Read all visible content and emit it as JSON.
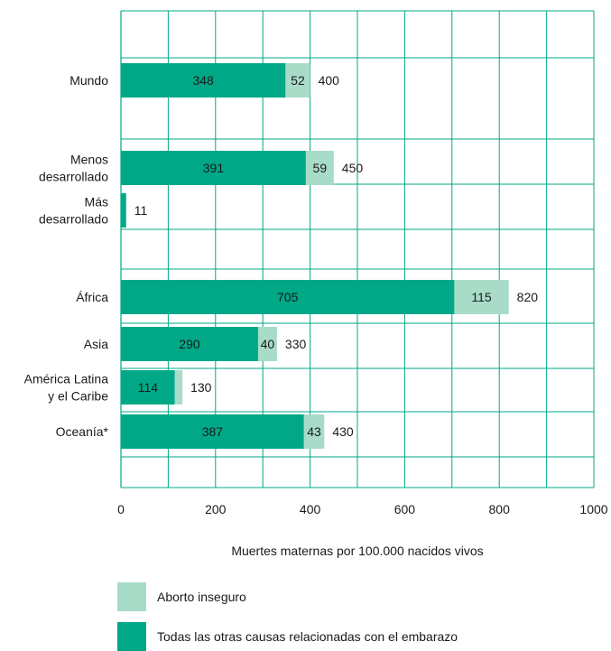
{
  "chart_data": {
    "type": "bar",
    "orientation": "horizontal",
    "stacked": true,
    "categories": [
      "Mundo",
      "Menos\ndesarrollado",
      "Más\ndesarrollado",
      "África",
      "Asia",
      "América Latina\ny el Caribe",
      "Oceanía*"
    ],
    "series": [
      {
        "name": "Todas las otras causas relacionadas con el embarazo",
        "color": "#00a887",
        "values": [
          348,
          391,
          11,
          705,
          290,
          114,
          387
        ],
        "labels": [
          "348",
          "391",
          "",
          "705",
          "290",
          "114",
          "387"
        ]
      },
      {
        "name": "Aborto inseguro",
        "color": "#a8dcc8",
        "values": [
          52,
          59,
          0,
          115,
          40,
          16,
          43
        ],
        "labels": [
          "52",
          "59",
          "",
          "115",
          "40",
          "",
          "43"
        ]
      }
    ],
    "totals": [
      "400",
      "450",
      "11",
      "820",
      "330",
      "130",
      "430"
    ],
    "xlim": [
      0,
      1000
    ],
    "xticks": [
      "0",
      "200",
      "400",
      "600",
      "800",
      "1000"
    ],
    "xlabel": "Muertes maternas por 100.000 nacidos vivos",
    "ylabel": "",
    "title": "",
    "grid": true,
    "legend_position": "bottom"
  },
  "legend": [
    {
      "label": "Aborto inseguro",
      "color": "#a8dcc8"
    },
    {
      "label": "Todas las otras causas relacionadas con el embarazo",
      "color": "#00a887"
    }
  ]
}
